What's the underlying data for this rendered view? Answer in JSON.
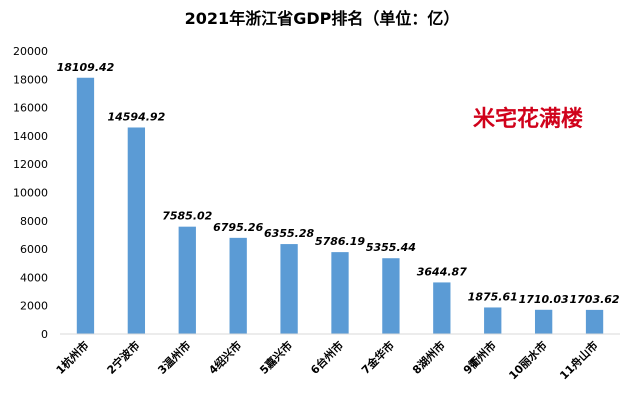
{
  "chart_data": {
    "type": "bar",
    "title": "2021年浙江省GDP排名（单位：亿）",
    "watermark": "米宅花满楼",
    "categories": [
      "1杭州市",
      "2宁波市",
      "3温州市",
      "4绍兴市",
      "5嘉兴市",
      "6台州市",
      "7金华市",
      "8湖州市",
      "9衢州市",
      "10丽水市",
      "11舟山市"
    ],
    "values": [
      18109.42,
      14594.92,
      7585.02,
      6795.26,
      6355.28,
      5786.19,
      5355.44,
      3644.87,
      1875.61,
      1710.03,
      1703.62
    ],
    "data_labels": [
      "18109.42",
      "14594.92",
      "7585.02",
      "6795.26",
      "6355.28",
      "5786.19",
      "5355.44",
      "3644.87",
      "1875.61",
      "1710.03",
      "1703.62"
    ],
    "yticks": [
      0,
      2000,
      4000,
      6000,
      8000,
      10000,
      12000,
      14000,
      16000,
      18000,
      20000
    ],
    "ylim": [
      0,
      20000
    ],
    "xlabel": "",
    "ylabel": "",
    "grid": false,
    "legend": "none",
    "bar_color": "#5b9bd5",
    "watermark_color": "#d0021b",
    "axis_color": "#d9d9d9",
    "text_color": "#000000"
  }
}
